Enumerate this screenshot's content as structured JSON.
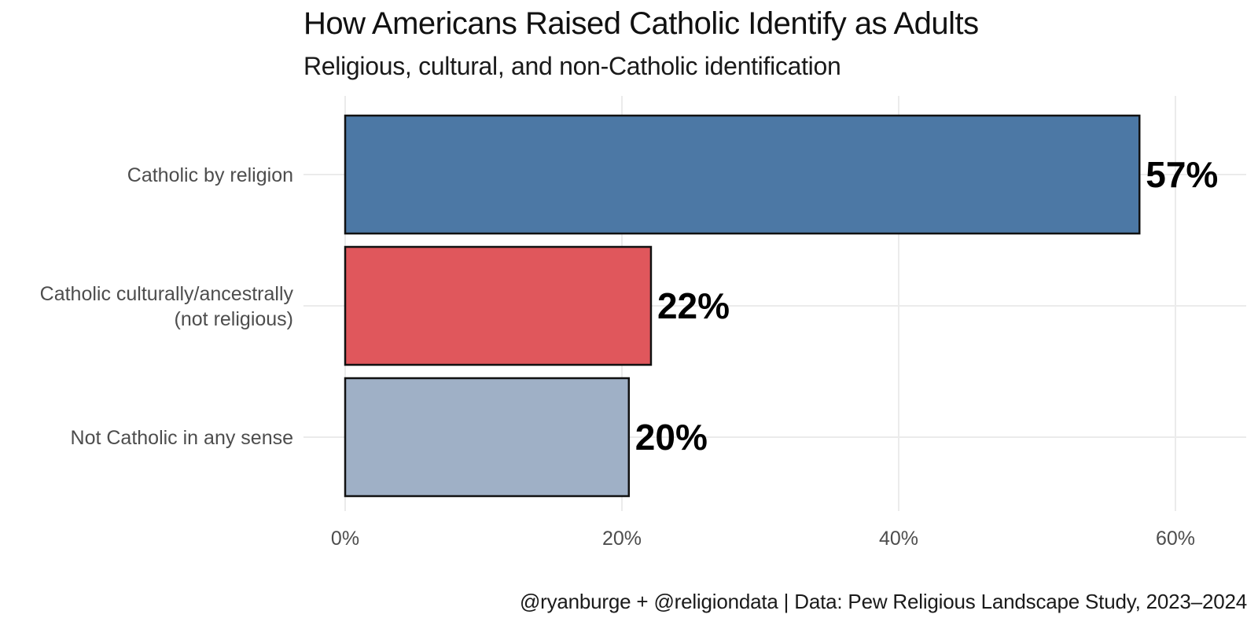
{
  "chart_data": {
    "type": "bar",
    "orientation": "horizontal",
    "title": "How Americans Raised Catholic Identify as Adults",
    "subtitle": "Religious, cultural, and non-Catholic identification",
    "caption": "@ryanburge + @religiondata | Data: Pew Religious Landscape Study, 2023–2024",
    "xlabel": "",
    "ylabel": "",
    "xlim": [
      0,
      65
    ],
    "grid": true,
    "x_ticks": [
      0,
      20,
      40,
      60
    ],
    "x_tick_labels": [
      "0%",
      "20%",
      "40%",
      "60%"
    ],
    "categories": [
      "Catholic by religion",
      "Catholic culturally/ancestrally\n(not religious)",
      "Not Catholic in any sense"
    ],
    "values": [
      57.4,
      22.1,
      20.5
    ],
    "data_labels": [
      "57%",
      "22%",
      "20%"
    ],
    "colors": [
      "#4C78A5",
      "#E0575C",
      "#9FB0C6"
    ],
    "bar_outline_color": "#111111",
    "grid_color": "#EBEBEB"
  }
}
